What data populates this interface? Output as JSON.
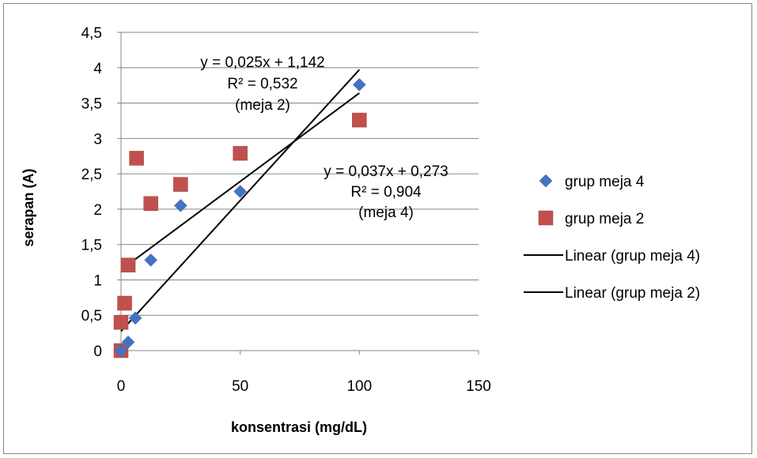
{
  "chart_data": {
    "type": "scatter",
    "xlabel": "konsentrasi (mg/dL)",
    "ylabel": "serapan (A)",
    "xlim": [
      0,
      150
    ],
    "ylim": [
      0,
      4.5
    ],
    "x_ticks": [
      "0",
      "50",
      "100",
      "150"
    ],
    "y_ticks": [
      "0",
      "0,5",
      "1",
      "1,5",
      "2",
      "2,5",
      "3",
      "3,5",
      "4",
      "4,5"
    ],
    "grid": "horizontal",
    "legend_position": "right",
    "series": [
      {
        "name": "grup meja 4",
        "marker": "diamond",
        "color": "#4472C4",
        "points": [
          [
            0,
            0
          ],
          [
            3,
            0.12
          ],
          [
            6,
            0.46
          ],
          [
            12.5,
            1.28
          ],
          [
            25,
            2.05
          ],
          [
            50,
            2.25
          ],
          [
            100,
            3.76
          ]
        ]
      },
      {
        "name": "grup meja 2",
        "marker": "square",
        "color": "#C0504D",
        "points": [
          [
            0,
            0
          ],
          [
            0,
            0.4
          ],
          [
            1.5,
            0.67
          ],
          [
            3,
            1.21
          ],
          [
            6.5,
            2.72
          ],
          [
            12.5,
            2.08
          ],
          [
            25,
            2.35
          ],
          [
            50,
            2.79
          ],
          [
            100,
            3.26
          ]
        ]
      }
    ],
    "trendlines": [
      {
        "name": "Linear (grup meja 4)",
        "slope": 0.037,
        "intercept": 0.273,
        "x_range": [
          0,
          100
        ],
        "color": "#000000"
      },
      {
        "name": "Linear (grup meja 2)",
        "slope": 0.025,
        "intercept": 1.142,
        "x_range": [
          0,
          100
        ],
        "color": "#000000"
      }
    ],
    "annotations": [
      {
        "id": "eq-meja2",
        "lines": [
          "y = 0,025x + 1,142",
          "R² = 0,532",
          "(meja 2)"
        ]
      },
      {
        "id": "eq-meja4",
        "lines": [
          "y = 0,037x + 0,273",
          "R² = 0,904",
          "(meja 4)"
        ]
      }
    ]
  }
}
